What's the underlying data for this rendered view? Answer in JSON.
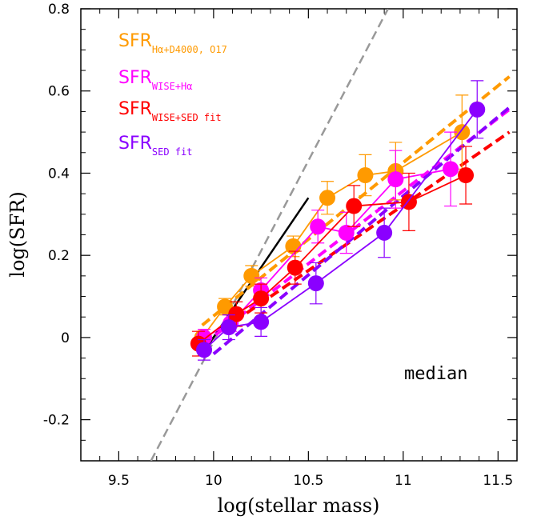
{
  "chart_data": {
    "type": "scatter",
    "title": "",
    "xlabel": "log(stellar mass)",
    "ylabel": "log(SFR)",
    "xlim": [
      9.3,
      11.6
    ],
    "ylim": [
      -0.3,
      0.8
    ],
    "xticks": [
      9.5,
      10,
      10.5,
      11,
      11.5
    ],
    "xtick_labels": [
      "9.5",
      "10",
      "10.5",
      "11",
      "11.5"
    ],
    "yticks": [
      -0.2,
      0,
      0.2,
      0.4,
      0.6,
      0.8
    ],
    "ytick_labels": [
      "-0.2",
      "0",
      "0.2",
      "0.4",
      "0.6",
      "0.8"
    ],
    "annotation": "median",
    "grid": false,
    "legend_position": "top-left",
    "series": [
      {
        "name": "SFR",
        "subscript": "Hα+D4000, O17",
        "color": "#ff9a00",
        "x": [
          9.94,
          10.06,
          10.2,
          10.42,
          10.6,
          10.8,
          10.96,
          11.31
        ],
        "y": [
          0.0,
          0.075,
          0.15,
          0.222,
          0.34,
          0.395,
          0.405,
          0.5
        ],
        "err": [
          0.015,
          0.02,
          0.025,
          0.025,
          0.04,
          0.05,
          0.07,
          0.09
        ],
        "fit_x": [
          9.94,
          11.56
        ],
        "fit_y": [
          0.03,
          0.635
        ]
      },
      {
        "name": "SFR",
        "subscript": "WISE+Hα",
        "color": "#ff00ff",
        "x": [
          9.95,
          10.09,
          10.25,
          10.55,
          10.7,
          10.96,
          11.25
        ],
        "y": [
          0.0,
          0.035,
          0.115,
          0.27,
          0.255,
          0.385,
          0.41
        ],
        "err": [
          0.02,
          0.02,
          0.03,
          0.04,
          0.05,
          0.07,
          0.09
        ],
        "fit_x": [
          9.95,
          11.56
        ],
        "fit_y": [
          -0.015,
          0.555
        ]
      },
      {
        "name": "SFR",
        "subscript": "WISE+SED fit",
        "color": "#ff0000",
        "x": [
          9.92,
          10.12,
          10.25,
          10.43,
          10.74,
          11.03,
          11.33
        ],
        "y": [
          -0.015,
          0.057,
          0.095,
          0.17,
          0.32,
          0.33,
          0.395
        ],
        "err": [
          0.03,
          0.03,
          0.035,
          0.04,
          0.05,
          0.07,
          0.07
        ],
        "fit_x": [
          10.05,
          11.56
        ],
        "fit_y": [
          0.02,
          0.5
        ]
      },
      {
        "name": "SFR",
        "subscript": "SED fit",
        "color": "#8a00ff",
        "x": [
          9.95,
          10.08,
          10.25,
          10.54,
          10.9,
          11.39
        ],
        "y": [
          -0.03,
          0.025,
          0.038,
          0.132,
          0.255,
          0.555
        ],
        "err": [
          0.025,
          0.03,
          0.035,
          0.05,
          0.06,
          0.07
        ],
        "fit_x": [
          10.0,
          11.56
        ],
        "fit_y": [
          -0.04,
          0.56
        ]
      }
    ],
    "reference_lines": [
      {
        "style": "dashed",
        "color": "#999999",
        "x": [
          9.67,
          10.92
        ],
        "y": [
          -0.3,
          0.8
        ]
      },
      {
        "style": "solid",
        "color": "#000000",
        "x": [
          9.94,
          10.5
        ],
        "y": [
          -0.04,
          0.34
        ]
      }
    ]
  }
}
